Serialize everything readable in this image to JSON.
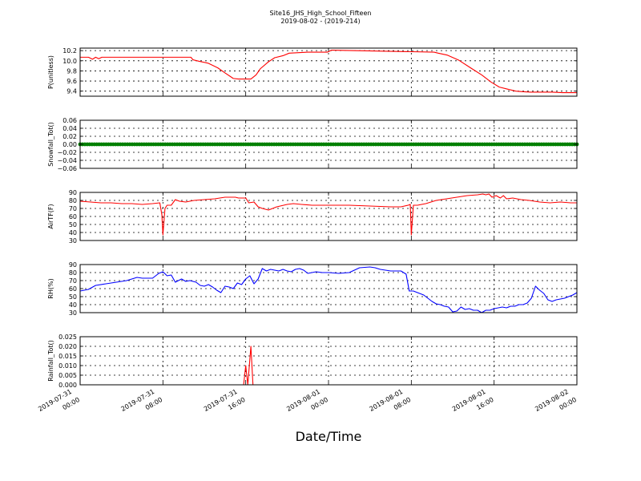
{
  "figure": {
    "title_line1": "Site16_JHS_High_School_Fifteen",
    "title_line2": "2019-08-02 - (2019-214)",
    "xlabel": "Date/Time",
    "x_ticks": [
      {
        "line1": "2019-07-31",
        "line2": "00:00"
      },
      {
        "line1": "2019-07-31",
        "line2": "08:00"
      },
      {
        "line1": "2019-07-31",
        "line2": "16:00"
      },
      {
        "line1": "2019-08-01",
        "line2": "00:00"
      },
      {
        "line1": "2019-08-01",
        "line2": "08:00"
      },
      {
        "line1": "2019-08-01",
        "line2": "16:00"
      },
      {
        "line1": "2019-08-02",
        "line2": "00:00"
      }
    ]
  },
  "chart_data": [
    {
      "type": "line",
      "ylabel": "P(unitless)",
      "x_range_hours": [
        0,
        48
      ],
      "ylim": [
        9.3,
        10.25
      ],
      "yticks": [
        "9.4",
        "9.6",
        "9.8",
        "10.0",
        "10.2"
      ],
      "yticks_values": [
        9.4,
        9.6,
        9.8,
        10.0,
        10.2
      ],
      "grid": true,
      "color": "#ff0000",
      "marker": "none",
      "series": [
        {
          "x": [
            0,
            0.8,
            1.2,
            1.5,
            1.8,
            2.1,
            2.2,
            10.7,
            10.9,
            11.5,
            12.4,
            13.3,
            14.0,
            14.8,
            15.3,
            16.1,
            16.5,
            17.0,
            17.4,
            18.2,
            18.8,
            19.6,
            20.2,
            22.0,
            22.5,
            23.9,
            24.3,
            34.2,
            34.6,
            35.5,
            36.6,
            37.8,
            38.8,
            39.7,
            40.5,
            41.3,
            42.1,
            42.7,
            43.5,
            44.4,
            45.6,
            46.6,
            48.0
          ],
          "y": [
            10.07,
            10.07,
            10.03,
            10.07,
            10.04,
            10.07,
            10.07,
            10.07,
            10.02,
            9.99,
            9.95,
            9.86,
            9.76,
            9.65,
            9.64,
            9.64,
            9.64,
            9.72,
            9.84,
            9.98,
            10.06,
            10.1,
            10.15,
            10.17,
            10.17,
            10.17,
            10.21,
            10.17,
            10.15,
            10.11,
            10.01,
            9.85,
            9.72,
            9.58,
            9.48,
            9.44,
            9.4,
            9.39,
            9.38,
            9.38,
            9.38,
            9.37,
            9.37
          ]
        }
      ]
    },
    {
      "type": "line",
      "ylabel": "Snowfall_Tot()",
      "x_range_hours": [
        0,
        48
      ],
      "ylim": [
        -0.06,
        0.06
      ],
      "yticks": [
        "−0.06",
        "−0.04",
        "−0.02",
        "0.00",
        "0.02",
        "0.04",
        "0.06"
      ],
      "yticks_values": [
        -0.06,
        -0.04,
        -0.02,
        0.0,
        0.02,
        0.04,
        0.06
      ],
      "grid": true,
      "color": "#008000",
      "marker": "circle",
      "series": [
        {
          "x": [
            0,
            48
          ],
          "y": [
            0.0,
            0.0
          ]
        }
      ]
    },
    {
      "type": "line",
      "ylabel": "AirTF(F)",
      "x_range_hours": [
        0,
        48
      ],
      "ylim": [
        30,
        90
      ],
      "yticks": [
        "30",
        "40",
        "50",
        "60",
        "70",
        "80",
        "90"
      ],
      "yticks_values": [
        30,
        40,
        50,
        60,
        70,
        80,
        90
      ],
      "grid": true,
      "color": "#ff0000",
      "marker": "none",
      "series": [
        {
          "x": [
            0,
            1.0,
            2.0,
            3.0,
            4.0,
            5.0,
            6.0,
            7.0,
            7.7,
            7.9,
            8.0,
            8.2,
            8.4,
            8.8,
            9.2,
            9.6,
            10.2,
            11.0,
            12.0,
            13.0,
            14.0,
            15.0,
            15.3,
            16.0,
            16.3,
            16.8,
            17.2,
            17.6,
            18.2,
            19.0,
            20.0,
            20.6,
            21.4,
            22.4,
            24.0,
            26.0,
            28.0,
            30.0,
            31.0,
            31.7,
            31.9,
            32.0,
            32.2,
            32.6,
            33.4,
            34.4,
            35.4,
            36.4,
            37.4,
            38.4,
            38.9,
            39.2,
            39.5,
            39.8,
            40.2,
            40.6,
            40.9,
            41.2,
            41.8,
            42.6,
            43.4,
            44.4,
            45.4,
            46.4,
            47.4,
            48.0
          ],
          "y": [
            79,
            78,
            77,
            77,
            76,
            76,
            75,
            76,
            77,
            62,
            37,
            70,
            74,
            74,
            81,
            79,
            78,
            80,
            81,
            82,
            84,
            84,
            83,
            83,
            77,
            78,
            72,
            70,
            68,
            72,
            75,
            76,
            75,
            74,
            74,
            74,
            73,
            72,
            72,
            74,
            75,
            37,
            74,
            74,
            76,
            80,
            82,
            84,
            86,
            87,
            88,
            87,
            88,
            84,
            86,
            83,
            86,
            82,
            83,
            81,
            80,
            78,
            77,
            78,
            77,
            77
          ]
        }
      ]
    },
    {
      "type": "line",
      "ylabel": "RH(%)",
      "x_range_hours": [
        0,
        48
      ],
      "ylim": [
        30,
        90
      ],
      "yticks": [
        "30",
        "40",
        "50",
        "60",
        "70",
        "80",
        "90"
      ],
      "yticks_values": [
        30,
        40,
        50,
        60,
        70,
        80,
        90
      ],
      "grid": true,
      "color": "#0000ff",
      "marker": "none",
      "series": [
        {
          "x": [
            0,
            0.8,
            1.5,
            2.5,
            3.5,
            4.5,
            5.5,
            6.0,
            6.5,
            7.0,
            7.6,
            8.0,
            8.4,
            8.8,
            9.2,
            9.8,
            10.2,
            10.6,
            11.2,
            11.6,
            12.0,
            12.4,
            12.8,
            13.2,
            13.6,
            14.0,
            14.4,
            14.8,
            15.2,
            15.6,
            16.0,
            16.4,
            16.8,
            17.2,
            17.6,
            18.0,
            18.4,
            18.8,
            19.2,
            19.6,
            20.0,
            20.4,
            20.8,
            21.2,
            21.6,
            22.0,
            22.4,
            22.8,
            23.4,
            24.0,
            25.0,
            26.0,
            27.0,
            28.0,
            28.5,
            29.0,
            29.5,
            30.0,
            30.5,
            31.0,
            31.5,
            31.8,
            32.2,
            32.8,
            33.2,
            33.6,
            34.0,
            34.4,
            34.8,
            35.2,
            35.6,
            36.0,
            36.4,
            36.8,
            37.2,
            37.6,
            38.0,
            38.4,
            38.8,
            39.2,
            39.6,
            40.0,
            40.4,
            40.8,
            41.2,
            41.6,
            42.0,
            42.4,
            42.8,
            43.2,
            43.6,
            44.0,
            44.4,
            44.8,
            45.2,
            45.6,
            46.0,
            46.4,
            46.8,
            47.2,
            47.6,
            48.0
          ],
          "y": [
            57,
            59,
            64,
            66,
            68,
            70,
            74,
            73,
            73,
            73,
            79,
            81,
            76,
            77,
            68,
            72,
            69,
            70,
            68,
            64,
            63,
            65,
            62,
            58,
            55,
            63,
            62,
            60,
            67,
            65,
            72,
            76,
            66,
            72,
            85,
            82,
            84,
            83,
            82,
            84,
            82,
            81,
            84,
            85,
            83,
            79,
            80,
            81,
            80,
            80,
            79,
            80,
            86,
            87,
            86,
            84,
            83,
            82,
            82,
            82,
            78,
            57,
            57,
            54,
            52,
            48,
            44,
            41,
            40,
            38,
            37,
            31,
            32,
            37,
            34,
            35,
            33,
            33,
            30,
            33,
            33,
            35,
            36,
            37,
            36,
            38,
            38,
            40,
            40,
            42,
            48,
            63,
            58,
            54,
            46,
            44,
            46,
            47,
            48,
            50,
            52,
            55
          ]
        }
      ]
    },
    {
      "type": "line",
      "ylabel": "Rainfall_Tot()",
      "x_range_hours": [
        0,
        48
      ],
      "ylim": [
        0.0,
        0.025
      ],
      "yticks": [
        "0.000",
        "0.005",
        "0.010",
        "0.015",
        "0.020",
        "0.025"
      ],
      "yticks_values": [
        0.0,
        0.005,
        0.01,
        0.015,
        0.02,
        0.025
      ],
      "grid": true,
      "color": "#ff0000",
      "marker": "none",
      "series": [
        {
          "x": [
            0,
            15.8,
            16.0,
            16.2,
            16.5,
            16.7,
            16.9,
            48.0
          ],
          "y": [
            0,
            0,
            0.01,
            0,
            0.02,
            0,
            0,
            0
          ]
        }
      ]
    }
  ]
}
